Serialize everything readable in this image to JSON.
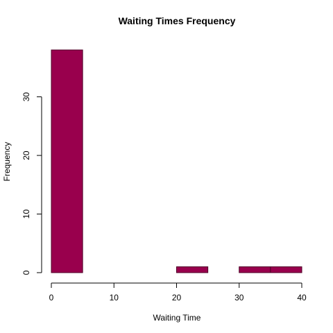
{
  "chart_data": {
    "type": "bar",
    "title": "Waiting Times Frequency",
    "xlabel": "Waiting Time",
    "ylabel": "Frequency",
    "bins": [
      {
        "start": 0,
        "end": 5,
        "count": 38
      },
      {
        "start": 5,
        "end": 10,
        "count": 0
      },
      {
        "start": 10,
        "end": 15,
        "count": 0
      },
      {
        "start": 15,
        "end": 20,
        "count": 0
      },
      {
        "start": 20,
        "end": 25,
        "count": 1
      },
      {
        "start": 25,
        "end": 30,
        "count": 0
      },
      {
        "start": 30,
        "end": 35,
        "count": 1
      },
      {
        "start": 35,
        "end": 40,
        "count": 1
      }
    ],
    "xticks": [
      0,
      10,
      20,
      30,
      40
    ],
    "yticks": [
      0,
      10,
      20,
      30
    ],
    "xlim": [
      0,
      40
    ],
    "ylim": [
      0,
      38
    ],
    "grid": false,
    "colors": {
      "fill": "#99004d",
      "border": "#4d0026"
    }
  }
}
